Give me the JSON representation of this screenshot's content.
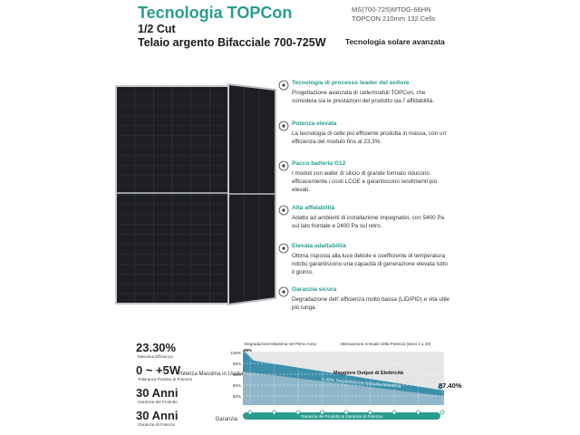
{
  "header": {
    "title": "Tecnologia TOPCon",
    "line1": "1/2 Cut",
    "line2": "Telaio argento Bifacciale 700-725W",
    "model": "MS(700-725)MTDG-66HN",
    "cells": "TOPCON 210mm 132 Cells",
    "tagline": "Tecnologia solare avanzata"
  },
  "features": [
    {
      "title": "Tecnologia di processo leader del settore",
      "description": "Progettazione avanzata di celle/moduli TOPCon, che considera sia le prestazioni del prodotto sia l' affidabilità."
    },
    {
      "title": "Potenza elevata",
      "description": "La tecnologia di celle più efficiente prodotta in massa, con un' efficienza del modulo fino al 23,3%."
    },
    {
      "title": "Pacco batteria G12",
      "description": "I moduli con wafer di silicio di grande formato riducono efficacemente i costi LCOE e garantiscono rendimenti più elevati."
    },
    {
      "title": "Alta affidabilità",
      "description": "Adatto ad ambienti di installazione impegnativi, con 5400 Pa sul lato frontale e 2400 Pa sul retro."
    },
    {
      "title": "Elevata adattabilità",
      "description": "Ottima risposta alla luce debole e coefficiente di temperatura ridotto garantiscono una capacità di generazione elevata tutto il giorno."
    },
    {
      "title": "Garanzia sicura",
      "description": "Degradazione dell' efficienza molto bassa (LID/PID) e vita utile più lunga."
    }
  ],
  "stats": [
    {
      "value": "23.30%",
      "label": "Massima Efficienza"
    },
    {
      "value": "0 ~ +5W",
      "label": "Tolleranza Positiva di Potenza"
    },
    {
      "value": "30 Anni",
      "label": "Garanzia del Prodotto"
    },
    {
      "value": "30 Anni",
      "label": "Garanzia di Potenza"
    }
  ],
  "degradation_graphic": {
    "first_year_label": "Degradazione Massima nel Primo Anno",
    "annual_label": "Attenuazione Annuale della Potenza (anno 2 a 30)",
    "y_labels": [
      "100%",
      "95%",
      "90%",
      "85%",
      "80%"
    ],
    "first_year_value": "99%",
    "y_axis_title": "Potenza Massima in Uscita",
    "output_label": "Maggiore Output di Elettricità",
    "annual_rate": "0.40% Degradazione Annuale Massima",
    "final_value": "87.40%",
    "warranty_label": "Garanzia",
    "warranty_bar": "Garanzia del Prodotto & Garanzia di Potenza"
  }
}
